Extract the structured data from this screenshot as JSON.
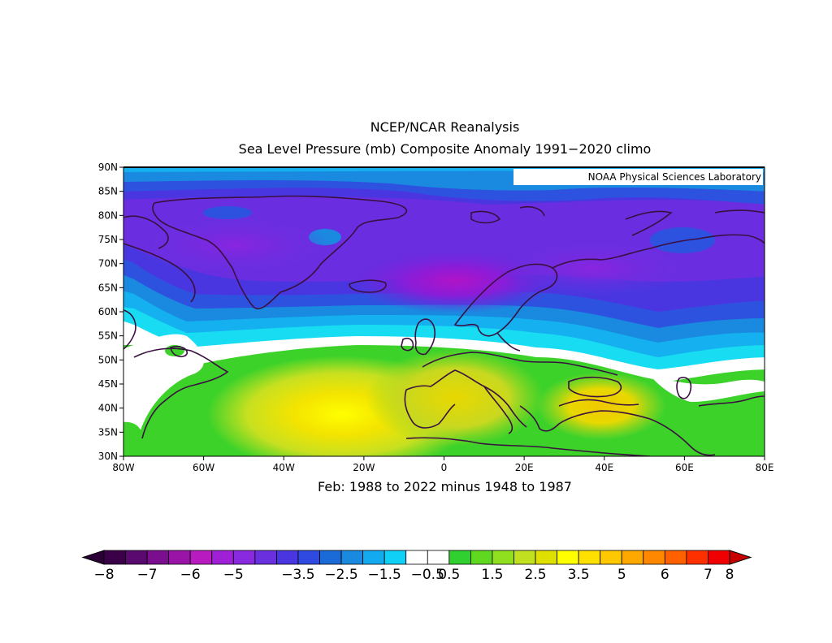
{
  "title_lines": [
    "NCEP/NCAR Reanalysis",
    "Sea Level Pressure (mb) Composite Anomaly 1991−2020 climo"
  ],
  "credit": "NOAA Physical Sciences Laboratory",
  "subtitle": "Feb: 1988 to 2022 minus 1948 to 1987",
  "map": {
    "lat_labels": [
      "90N",
      "85N",
      "80N",
      "75N",
      "70N",
      "65N",
      "60N",
      "55N",
      "50N",
      "45N",
      "40N",
      "35N",
      "30N"
    ],
    "lon_labels": [
      "80W",
      "60W",
      "40W",
      "20W",
      "0",
      "20E",
      "40E",
      "60E",
      "80E"
    ],
    "lon_range": [
      -80,
      80
    ],
    "lat_range": [
      30,
      90
    ]
  },
  "colorbar": {
    "labels": [
      "−8",
      "−7",
      "−6",
      "−5",
      "−3.5",
      "−2.5",
      "−1.5",
      "−0.5",
      "0.5",
      "1.5",
      "2.5",
      "3.5",
      "5",
      "6",
      "7",
      "8"
    ],
    "colors": [
      "#3a0048",
      "#5a0a6e",
      "#7a0e8e",
      "#9a14a8",
      "#b81cc0",
      "#a020d8",
      "#8a2ae0",
      "#6a30e0",
      "#4a36e0",
      "#2e4ae0",
      "#1a6ad8",
      "#1a8ae0",
      "#14aaf0",
      "#10d0f8",
      "#ffffff",
      "#ffffff",
      "#30d030",
      "#60d820",
      "#90e020",
      "#c0e020",
      "#e0e000",
      "#ffff00",
      "#ffe000",
      "#ffc800",
      "#ffa800",
      "#ff8800",
      "#ff6000",
      "#ff3000",
      "#f00000"
    ],
    "under_color": "#2a0036",
    "over_color": "#c80000"
  },
  "colors": {
    "coast": "#3a1040"
  }
}
